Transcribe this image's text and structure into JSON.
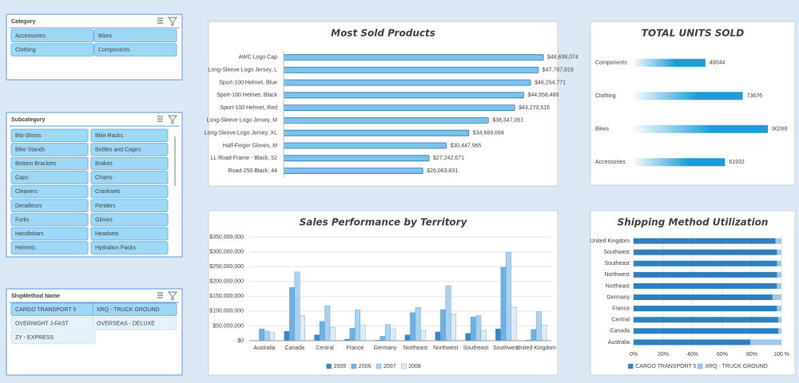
{
  "slicers": [
    {
      "title": "Category",
      "items": [
        {
          "label": "Accessories",
          "selected": true
        },
        {
          "label": "Bikes",
          "selected": true
        },
        {
          "label": "Clothing",
          "selected": true
        },
        {
          "label": "Components",
          "selected": true
        }
      ]
    },
    {
      "title": "Subcategory",
      "items": [
        {
          "label": "Bib-Shorts",
          "selected": true
        },
        {
          "label": "Bike Racks",
          "selected": true
        },
        {
          "label": "Bike Stands",
          "selected": true
        },
        {
          "label": "Bottles and Cages",
          "selected": true
        },
        {
          "label": "Bottom Brackets",
          "selected": true
        },
        {
          "label": "Brakes",
          "selected": true
        },
        {
          "label": "Caps",
          "selected": true
        },
        {
          "label": "Chains",
          "selected": true
        },
        {
          "label": "Cleaners",
          "selected": true
        },
        {
          "label": "Cranksets",
          "selected": true
        },
        {
          "label": "Derailleurs",
          "selected": true
        },
        {
          "label": "Fenders",
          "selected": true
        },
        {
          "label": "Forks",
          "selected": true
        },
        {
          "label": "Gloves",
          "selected": true
        },
        {
          "label": "Handlebars",
          "selected": true
        },
        {
          "label": "Headsets",
          "selected": true
        },
        {
          "label": "Helmets",
          "selected": true
        },
        {
          "label": "Hydration Packs",
          "selected": true
        }
      ]
    },
    {
      "title": "ShipMethod Name",
      "items": [
        {
          "label": "CARGO TRANSPORT 5",
          "selected": true
        },
        {
          "label": "XRQ - TRUCK GROUND",
          "selected": true
        },
        {
          "label": "OVERNIGHT J-FAST",
          "selected": false
        },
        {
          "label": "OVERSEAS - DELUXE",
          "selected": false
        },
        {
          "label": "ZY - EXPRESS",
          "selected": false
        }
      ]
    }
  ],
  "chart_data": [
    {
      "type": "bar",
      "orientation": "horizontal",
      "title": "Most Sold Products",
      "color": "#7cc3ec",
      "categories": [
        "AWC Logo Cap",
        "Long-Sleeve Logo Jersey, L",
        "Sport-100 Helmet, Blue",
        "Sport-100 Helmet, Black",
        "Sport-100 Helmet, Red",
        "Long-Sleeve Logo Jersey, M",
        "Long-Sleeve Logo Jersey, XL",
        "Half-Finger Gloves, M",
        "LL Road Frame - Black, 52",
        "Road-250 Black, 44"
      ],
      "values": [
        48636074,
        47707919,
        46254771,
        44958480,
        43270516,
        38347061,
        34689694,
        30447965,
        27242671,
        26063831
      ],
      "value_labels": [
        "$48,636,074",
        "$47,707,919",
        "$46,254,771",
        "$44,958,480",
        "$43,270,516",
        "$38,347,061",
        "$34,689,694",
        "$30,447,965",
        "$27,242,671",
        "$26,063,831"
      ]
    },
    {
      "type": "bar",
      "orientation": "horizontal",
      "title": "TOTAL UNITS SOLD",
      "color": "#1f9bd7",
      "categories": [
        "Components",
        "Clothing",
        "Bikes",
        "Accessories"
      ],
      "values": [
        49044,
        73676,
        90268,
        61932
      ]
    },
    {
      "type": "bar",
      "orientation": "vertical",
      "title": "Sales Performance by Territory",
      "grid": true,
      "legend": "bottom",
      "categories": [
        "Australia",
        "Canada",
        "Central",
        "France",
        "Germany",
        "Northeast",
        "Northwest",
        "Southeast",
        "Southwest",
        "United Kingdom"
      ],
      "series": [
        {
          "name": "2005",
          "color": "#3a86c4",
          "values": [
            1000000,
            32000000,
            20000000,
            5000000,
            2000000,
            20000000,
            30000000,
            25000000,
            40000000,
            2000000
          ]
        },
        {
          "name": "2006",
          "color": "#6fb0e0",
          "values": [
            40000000,
            180000000,
            65000000,
            42000000,
            15000000,
            95000000,
            105000000,
            80000000,
            248000000,
            38000000
          ]
        },
        {
          "name": "2007",
          "color": "#a9d2f0",
          "values": [
            33000000,
            232000000,
            118000000,
            105000000,
            55000000,
            112000000,
            185000000,
            85000000,
            298000000,
            98000000
          ]
        },
        {
          "name": "2008",
          "color": "#dcecf8",
          "values": [
            28000000,
            85000000,
            45000000,
            52000000,
            40000000,
            35000000,
            90000000,
            35000000,
            113000000,
            52000000
          ]
        }
      ],
      "ylim": [
        0,
        350000000
      ],
      "yticks": [
        {
          "value": 0,
          "label": "$0"
        },
        {
          "value": 50000000,
          "label": "$50,000,000"
        },
        {
          "value": 100000000,
          "label": "$100,000,000"
        },
        {
          "value": 150000000,
          "label": "$150,000,000"
        },
        {
          "value": 200000000,
          "label": "$200,000,000"
        },
        {
          "value": 250000000,
          "label": "$250,000,000"
        },
        {
          "value": 300000000,
          "label": "$300,000,000"
        },
        {
          "value": 350000000,
          "label": "$350,000,000"
        }
      ]
    },
    {
      "type": "bar",
      "orientation": "horizontal",
      "stacked": true,
      "title": "Shipping Method Utilization",
      "grid": true,
      "legend": "bottom",
      "categories": [
        "United Kingdom",
        "Southwest",
        "Southeast",
        "Northwest",
        "Northeast",
        "Germany",
        "France",
        "Central",
        "Canada",
        "Australia"
      ],
      "series": [
        {
          "name": "CARGO TRANSPORT 5",
          "color": "#2e7fbf",
          "values": [
            96,
            97,
            97,
            97,
            97,
            94,
            97,
            98,
            98,
            79
          ]
        },
        {
          "name": "XRQ - TRUCK GROUND",
          "color": "#9dc8ea",
          "values": [
            4,
            3,
            3,
            3,
            3,
            6,
            3,
            2,
            2,
            21
          ]
        }
      ],
      "xlim": [
        0,
        100
      ],
      "xticks": [
        {
          "value": 0,
          "label": "0%"
        },
        {
          "value": 20,
          "label": "20%"
        },
        {
          "value": 40,
          "label": "40%"
        },
        {
          "value": 60,
          "label": "60%"
        },
        {
          "value": 80,
          "label": "80%"
        },
        {
          "value": 100,
          "label": "100 %"
        }
      ]
    }
  ]
}
